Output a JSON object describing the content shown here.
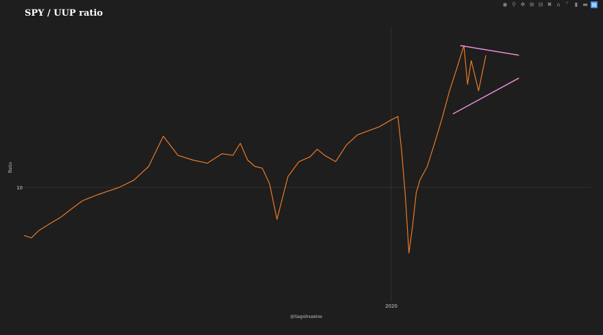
{
  "chart_data": {
    "type": "line",
    "title": "SPY / UUP ratio",
    "xlabel": "@tiagolvsantos",
    "ylabel": "Ratio",
    "x_tick_labels": [
      "2020"
    ],
    "y_tick_labels": [
      "10"
    ],
    "y_scale": "log",
    "grid": true,
    "legend": "none",
    "series": [
      {
        "color": "#f07b25",
        "x": [
          2015.0,
          2015.1,
          2015.2,
          2015.35,
          2015.5,
          2015.65,
          2015.8,
          2016.0,
          2016.15,
          2016.3,
          2016.5,
          2016.7,
          2016.9,
          2017.1,
          2017.3,
          2017.5,
          2017.7,
          2017.85,
          2017.95,
          2018.05,
          2018.15,
          2018.25,
          2018.35,
          2018.45,
          2018.6,
          2018.75,
          2018.9,
          2019.0,
          2019.1,
          2019.25,
          2019.4,
          2019.55,
          2019.7,
          2019.85,
          2020.0,
          2020.1,
          2020.15,
          2020.2,
          2020.25,
          2020.3,
          2020.35,
          2020.4,
          2020.5,
          2020.6,
          2020.7,
          2020.8,
          2020.9,
          2021.0,
          2021.05,
          2021.1,
          2021.2,
          2021.3
        ],
        "values": [
          7.7,
          7.6,
          7.9,
          8.2,
          8.5,
          8.9,
          9.3,
          9.6,
          9.8,
          10.0,
          10.4,
          11.2,
          13.2,
          11.9,
          11.6,
          11.4,
          12.0,
          11.9,
          12.7,
          11.6,
          11.2,
          11.1,
          10.2,
          8.4,
          10.6,
          11.5,
          11.8,
          12.3,
          11.9,
          11.5,
          12.6,
          13.3,
          13.6,
          13.9,
          14.4,
          14.7,
          12.2,
          9.6,
          7.0,
          8.1,
          9.7,
          10.4,
          11.2,
          12.7,
          14.5,
          16.8,
          19.0,
          21.6,
          17.5,
          19.9,
          16.9,
          20.5
        ]
      },
      {
        "color": "#ef8ed8",
        "x": [
          2020.95,
          2021.75
        ],
        "values": [
          21.6,
          20.5
        ]
      },
      {
        "color": "#ef8ed8",
        "x": [
          2020.85,
          2021.75
        ],
        "values": [
          14.9,
          18.1
        ]
      }
    ]
  }
}
